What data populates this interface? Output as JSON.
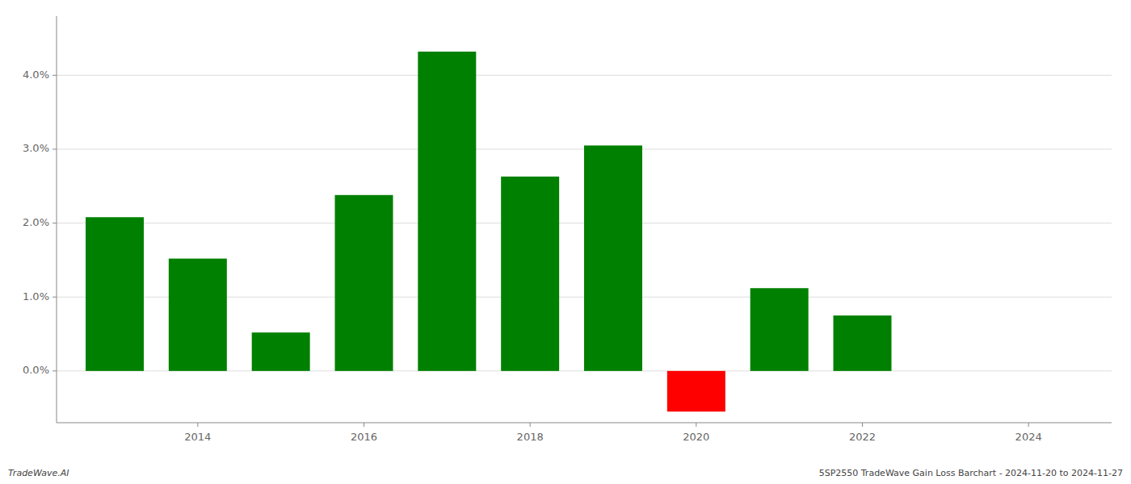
{
  "chart_data": {
    "type": "bar",
    "x": [
      2013,
      2014,
      2015,
      2016,
      2017,
      2018,
      2019,
      2020,
      2021,
      2022,
      2023
    ],
    "values": [
      0.0208,
      0.0152,
      0.0052,
      0.0238,
      0.0432,
      0.0263,
      0.0305,
      -0.0055,
      0.0112,
      0.0075,
      0.0
    ],
    "colors": [
      "#008000",
      "#008000",
      "#008000",
      "#008000",
      "#008000",
      "#008000",
      "#008000",
      "#ff0000",
      "#008000",
      "#008000",
      "#008000"
    ],
    "xlim": [
      2012.3,
      2025.0
    ],
    "xticks": [
      2014,
      2016,
      2018,
      2020,
      2022,
      2024
    ],
    "ylim": [
      -0.007,
      0.048
    ],
    "yticks": [
      {
        "value": 0.0,
        "label": "0.0%"
      },
      {
        "value": 0.01,
        "label": "1.0%"
      },
      {
        "value": 0.02,
        "label": "2.0%"
      },
      {
        "value": 0.03,
        "label": "3.0%"
      },
      {
        "value": 0.04,
        "label": "4.0%"
      }
    ],
    "grid": true,
    "annotations": [
      "TradeWave.AI",
      "5SP2550 TradeWave Gain Loss Barchart - 2024-11-20 to 2024-11-27"
    ]
  }
}
